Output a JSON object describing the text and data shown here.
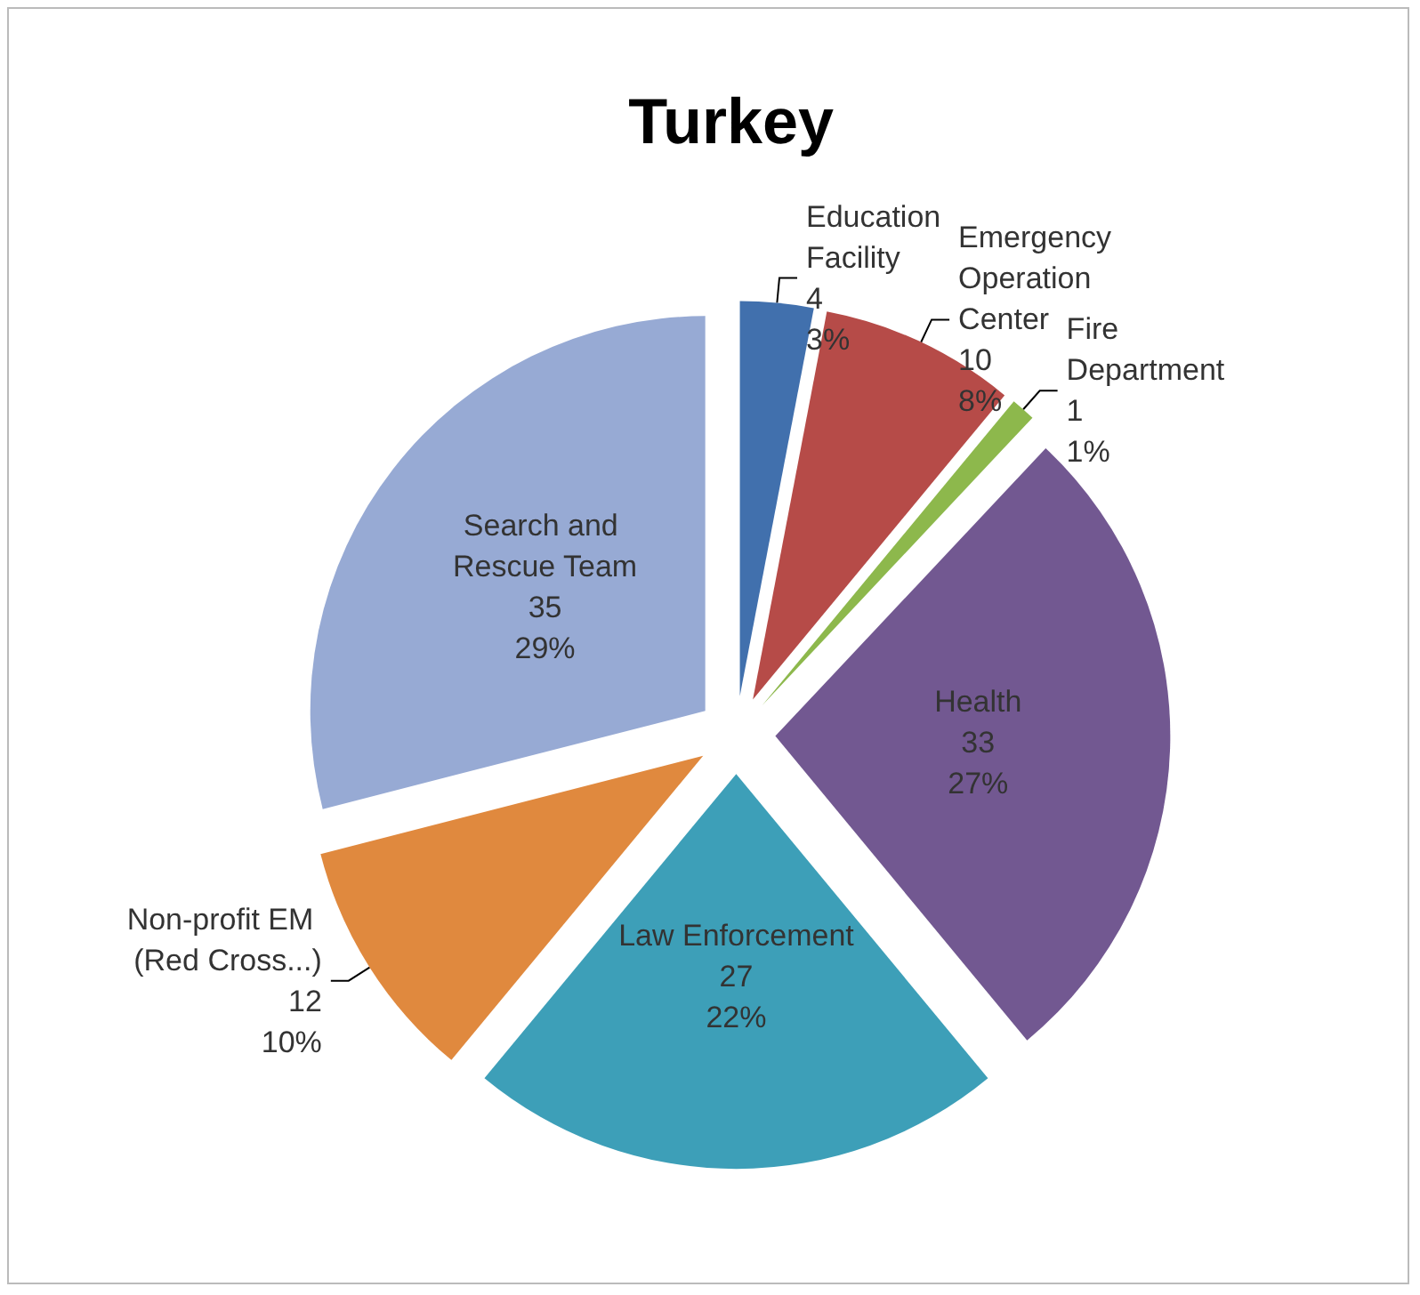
{
  "chart_data": {
    "type": "pie",
    "title": "Turkey",
    "categories": [
      "Education Facility",
      "Emergency Operation Center",
      "Fire Department",
      "Health",
      "Law Enforcement",
      "Non-profit EM (Red Cross...)",
      "Search and Rescue Team"
    ],
    "values": [
      3,
      8,
      1,
      27,
      22,
      10,
      29
    ],
    "value_labels": [
      "4\n3%",
      "10\n8%",
      "1\n1%",
      "33\n27%",
      "27\n22%",
      "12\n10%",
      "35\n29%"
    ],
    "colors": [
      "#4170ad",
      "#b64b48",
      "#8db84c",
      "#725891",
      "#3d9fb8",
      "#e0893e",
      "#97aad4"
    ],
    "legend": false
  }
}
